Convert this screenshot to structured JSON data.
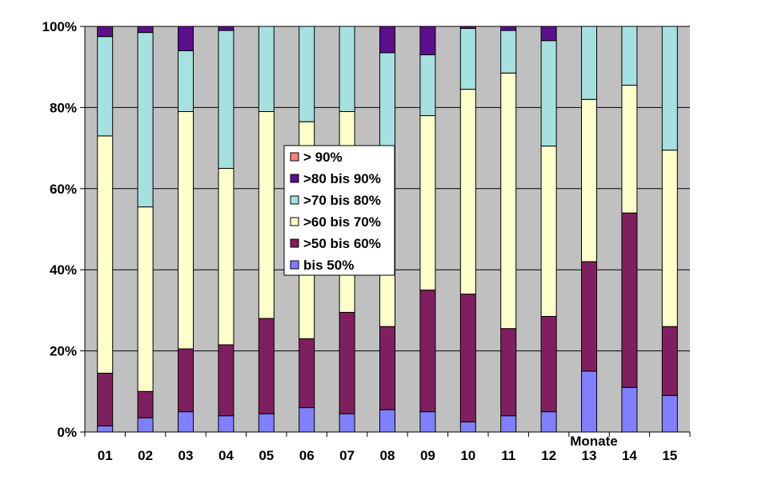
{
  "chart_data": {
    "type": "bar",
    "stacked": true,
    "percent": true,
    "xlabel": "Monate",
    "ylabel": "",
    "ylim": [
      0,
      100
    ],
    "yticks": [
      "0%",
      "20%",
      "40%",
      "60%",
      "80%",
      "100%"
    ],
    "grid": true,
    "legend_position": "center-left",
    "categories": [
      "01",
      "02",
      "03",
      "04",
      "05",
      "06",
      "07",
      "08",
      "09",
      "10",
      "11",
      "12",
      "13",
      "14",
      "15"
    ],
    "series": [
      {
        "name": "bis 50%",
        "color": "#8080ff",
        "values": [
          1.5,
          3.5,
          5,
          4,
          4.5,
          6,
          4.5,
          5.5,
          5,
          2.5,
          4,
          5,
          15,
          11,
          9
        ]
      },
      {
        "name": ">50 bis 60%",
        "color": "#7f1f5f",
        "values": [
          13,
          6.5,
          15.5,
          17.5,
          23.5,
          17,
          25,
          20.5,
          30,
          31.5,
          21.5,
          23.5,
          27,
          43,
          17
        ]
      },
      {
        "name": ">60 bis 70%",
        "color": "#ffffcc",
        "values": [
          58.5,
          45.5,
          58.5,
          43.5,
          51,
          53.5,
          49.5,
          23,
          43,
          50.5,
          63,
          42,
          40,
          31.5,
          43.5
        ]
      },
      {
        "name": ">70 bis 80%",
        "color": "#a6e0e0",
        "values": [
          24.5,
          43,
          15,
          34,
          21,
          23.5,
          21,
          44.5,
          15,
          15,
          10.5,
          26,
          18,
          14.5,
          30.5
        ]
      },
      {
        "name": ">80 bis 90%",
        "color": "#5c0f8b",
        "values": [
          2.5,
          1.5,
          6,
          1,
          0,
          0,
          0,
          6.5,
          7,
          0.5,
          1,
          3.5,
          0,
          0,
          0
        ]
      },
      {
        "name": "> 90%",
        "color": "#ff8080",
        "values": [
          0,
          0,
          0,
          0,
          0,
          0,
          0,
          0,
          0,
          0,
          0,
          0,
          0,
          0,
          0
        ]
      }
    ]
  }
}
